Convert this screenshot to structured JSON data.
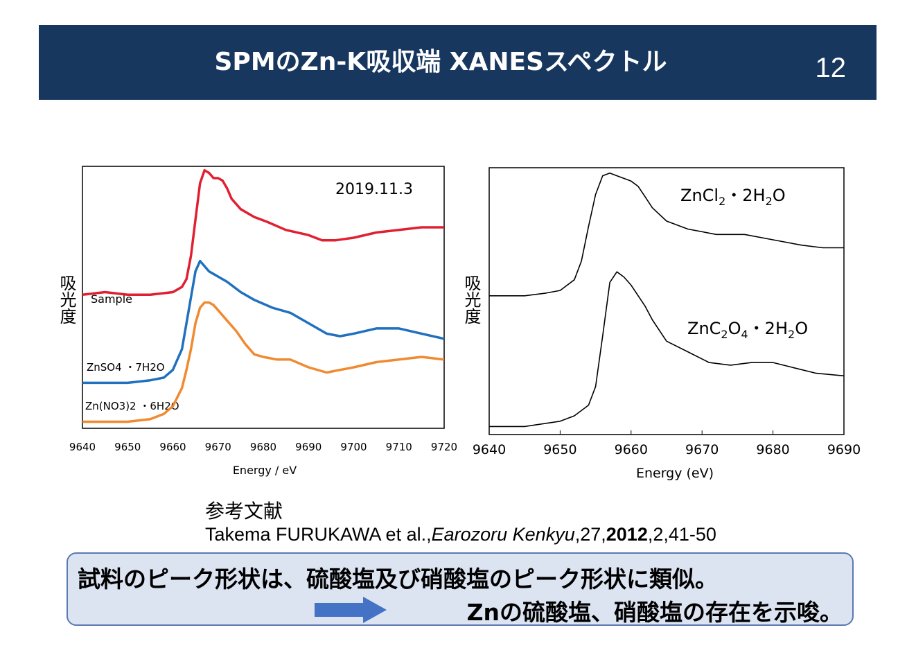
{
  "slide": {
    "title": "SPMのZn-K吸収端 XANESスペクトル",
    "page_number": "12"
  },
  "reference": {
    "heading": "参考文献",
    "authors": "Takema FURUKAWA et al.,",
    "journal": "Earozoru Kenkyu",
    "volume": ",27,",
    "year": "2012",
    "pages": ",2,41-50"
  },
  "conclusion": {
    "line1": "試料のピーク形状は、硫酸塩及び硝酸塩のピーク形状に類似。",
    "line2": "Znの硫酸塩、硝酸塩の存在を示唆。"
  },
  "colors": {
    "header_bg": "#17375e",
    "sample": "#e02030",
    "znso4": "#2070c0",
    "zn_no3": "#f08a30",
    "concl_bg": "#dce3f1"
  },
  "chart_data": [
    {
      "type": "line",
      "annotation": "2019.11.3",
      "xlabel": "Energy / eV",
      "ylabel": "吸光度",
      "xlim": [
        9640,
        9720
      ],
      "x_ticks": [
        9640,
        9650,
        9660,
        9670,
        9680,
        9690,
        9700,
        9710,
        9720
      ],
      "series": [
        {
          "name": "Sample",
          "color": "#e02030",
          "points": [
            [
              9640,
              0.51
            ],
            [
              9645,
              0.52
            ],
            [
              9650,
              0.51
            ],
            [
              9655,
              0.51
            ],
            [
              9660,
              0.52
            ],
            [
              9662,
              0.54
            ],
            [
              9663,
              0.57
            ],
            [
              9664,
              0.66
            ],
            [
              9665,
              0.8
            ],
            [
              9666,
              0.94
            ],
            [
              9667,
              0.99
            ],
            [
              9668,
              0.98
            ],
            [
              9669,
              0.96
            ],
            [
              9670,
              0.96
            ],
            [
              9671,
              0.95
            ],
            [
              9672,
              0.92
            ],
            [
              9673,
              0.88
            ],
            [
              9675,
              0.84
            ],
            [
              9678,
              0.81
            ],
            [
              9681,
              0.79
            ],
            [
              9685,
              0.76
            ],
            [
              9690,
              0.74
            ],
            [
              9693,
              0.72
            ],
            [
              9696,
              0.72
            ],
            [
              9700,
              0.73
            ],
            [
              9705,
              0.75
            ],
            [
              9710,
              0.76
            ],
            [
              9715,
              0.77
            ],
            [
              9720,
              0.77
            ]
          ]
        },
        {
          "name": "ZnSO4・7H2O",
          "color": "#2070c0",
          "points": [
            [
              9640,
              0.17
            ],
            [
              9645,
              0.17
            ],
            [
              9650,
              0.17
            ],
            [
              9655,
              0.18
            ],
            [
              9658,
              0.19
            ],
            [
              9660,
              0.22
            ],
            [
              9662,
              0.3
            ],
            [
              9663,
              0.4
            ],
            [
              9664,
              0.5
            ],
            [
              9665,
              0.6
            ],
            [
              9666,
              0.64
            ],
            [
              9667,
              0.62
            ],
            [
              9668,
              0.6
            ],
            [
              9669,
              0.59
            ],
            [
              9670,
              0.58
            ],
            [
              9672,
              0.56
            ],
            [
              9675,
              0.52
            ],
            [
              9678,
              0.49
            ],
            [
              9682,
              0.46
            ],
            [
              9686,
              0.44
            ],
            [
              9690,
              0.4
            ],
            [
              9694,
              0.36
            ],
            [
              9697,
              0.35
            ],
            [
              9700,
              0.36
            ],
            [
              9705,
              0.38
            ],
            [
              9710,
              0.38
            ],
            [
              9715,
              0.36
            ],
            [
              9720,
              0.34
            ]
          ]
        },
        {
          "name": "Zn(NO3)2・6H2O",
          "color": "#f08a30",
          "points": [
            [
              9640,
              0.02
            ],
            [
              9645,
              0.02
            ],
            [
              9650,
              0.02
            ],
            [
              9655,
              0.03
            ],
            [
              9658,
              0.05
            ],
            [
              9660,
              0.08
            ],
            [
              9662,
              0.15
            ],
            [
              9663,
              0.22
            ],
            [
              9664,
              0.3
            ],
            [
              9665,
              0.4
            ],
            [
              9666,
              0.46
            ],
            [
              9667,
              0.48
            ],
            [
              9668,
              0.48
            ],
            [
              9669,
              0.47
            ],
            [
              9670,
              0.45
            ],
            [
              9672,
              0.41
            ],
            [
              9674,
              0.37
            ],
            [
              9676,
              0.32
            ],
            [
              9678,
              0.28
            ],
            [
              9680,
              0.27
            ],
            [
              9683,
              0.26
            ],
            [
              9686,
              0.26
            ],
            [
              9690,
              0.23
            ],
            [
              9694,
              0.21
            ],
            [
              9697,
              0.22
            ],
            [
              9700,
              0.23
            ],
            [
              9705,
              0.25
            ],
            [
              9710,
              0.26
            ],
            [
              9715,
              0.27
            ],
            [
              9720,
              0.26
            ]
          ]
        }
      ],
      "legend": [
        "Sample",
        "ZnSO4 ・7H2O",
        "Zn(NO3)2 ・6H2O"
      ]
    },
    {
      "type": "line",
      "xlabel": "Energy (eV)",
      "ylabel": "吸光度",
      "xlim": [
        9640,
        9690
      ],
      "x_ticks": [
        9640,
        9650,
        9660,
        9670,
        9680,
        9690
      ],
      "series": [
        {
          "name": "ZnCl2・2H2O",
          "label_main": "ZnCl",
          "label_sub1": "2",
          "label_mid": "・2H",
          "label_sub2": "2",
          "label_end": "O",
          "points": [
            [
              9640,
              0.52
            ],
            [
              9645,
              0.52
            ],
            [
              9648,
              0.53
            ],
            [
              9650,
              0.54
            ],
            [
              9652,
              0.58
            ],
            [
              9653,
              0.65
            ],
            [
              9654,
              0.78
            ],
            [
              9655,
              0.9
            ],
            [
              9656,
              0.97
            ],
            [
              9657,
              0.98
            ],
            [
              9658,
              0.97
            ],
            [
              9660,
              0.95
            ],
            [
              9661,
              0.93
            ],
            [
              9662,
              0.89
            ],
            [
              9663,
              0.85
            ],
            [
              9665,
              0.8
            ],
            [
              9668,
              0.77
            ],
            [
              9672,
              0.75
            ],
            [
              9676,
              0.75
            ],
            [
              9680,
              0.73
            ],
            [
              9684,
              0.71
            ],
            [
              9687,
              0.7
            ],
            [
              9690,
              0.7
            ]
          ]
        },
        {
          "name": "ZnC2O4・2H2O",
          "label_main": "ZnC",
          "label_sub1": "2",
          "label_mid": "O",
          "label_sub2": "4",
          "label_end": "・2H",
          "label_sub3": "2",
          "label_end2": "O",
          "points": [
            [
              9640,
              0.03
            ],
            [
              9645,
              0.03
            ],
            [
              9650,
              0.05
            ],
            [
              9652,
              0.07
            ],
            [
              9654,
              0.11
            ],
            [
              9655,
              0.18
            ],
            [
              9656,
              0.37
            ],
            [
              9657,
              0.57
            ],
            [
              9658,
              0.61
            ],
            [
              9659,
              0.59
            ],
            [
              9660,
              0.56
            ],
            [
              9662,
              0.48
            ],
            [
              9663,
              0.43
            ],
            [
              9665,
              0.35
            ],
            [
              9668,
              0.31
            ],
            [
              9671,
              0.27
            ],
            [
              9674,
              0.26
            ],
            [
              9677,
              0.27
            ],
            [
              9680,
              0.27
            ],
            [
              9683,
              0.25
            ],
            [
              9686,
              0.23
            ],
            [
              9690,
              0.22
            ]
          ]
        }
      ]
    }
  ]
}
